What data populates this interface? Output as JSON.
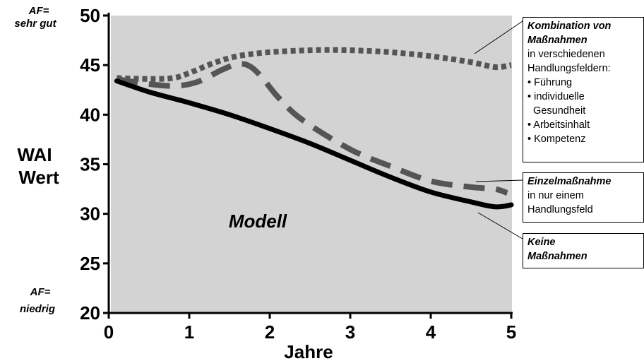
{
  "chart_data": {
    "type": "line",
    "xlabel": "Jahre",
    "ylabel": [
      "WAI",
      "Wert"
    ],
    "xlim": [
      0,
      5
    ],
    "ylim": [
      20,
      50
    ],
    "x_ticks": [
      "0",
      "1",
      "2",
      "3",
      "4",
      "5"
    ],
    "y_ticks": [
      "20",
      "25",
      "30",
      "35",
      "40",
      "45",
      "50"
    ],
    "y_top_note": [
      "AF=",
      "sehr gut"
    ],
    "y_bottom_note": [
      "AF=",
      "niedrig"
    ],
    "plot_label": "Modell",
    "grid": false,
    "plot_background": "#d3d3d3",
    "series": [
      {
        "key": "kombination",
        "style": "dotted",
        "color": "#555555",
        "x": [
          0.1,
          0.5,
          0.8,
          1.0,
          1.3,
          1.6,
          2.0,
          2.5,
          3.0,
          3.5,
          4.0,
          4.5,
          4.8,
          5.0
        ],
        "y": [
          43.7,
          43.6,
          43.7,
          44.2,
          45.2,
          45.9,
          46.3,
          46.5,
          46.5,
          46.3,
          45.9,
          45.3,
          44.8,
          45.0
        ]
      },
      {
        "key": "einzel",
        "style": "dashed",
        "color": "#555555",
        "x": [
          0.1,
          0.4,
          0.8,
          1.1,
          1.4,
          1.6,
          1.75,
          1.9,
          2.1,
          2.4,
          3.0,
          3.5,
          4.0,
          4.5,
          4.8,
          4.95
        ],
        "y": [
          43.6,
          43.2,
          42.9,
          43.3,
          44.5,
          45.1,
          44.9,
          43.8,
          41.8,
          39.5,
          36.5,
          34.8,
          33.3,
          32.7,
          32.5,
          32.1
        ]
      },
      {
        "key": "keine",
        "style": "solid",
        "color": "#000000",
        "x": [
          0.1,
          0.5,
          1.0,
          1.5,
          2.0,
          2.5,
          3.0,
          3.5,
          4.0,
          4.5,
          4.8,
          5.0
        ],
        "y": [
          43.4,
          42.3,
          41.2,
          40.0,
          38.6,
          37.1,
          35.4,
          33.7,
          32.2,
          31.2,
          30.7,
          30.9
        ]
      }
    ],
    "annotations": [
      {
        "key": "kombination",
        "bold_lines": [
          "Kombination von",
          "Maßnahmen"
        ],
        "lines": [
          "in verschiedenen",
          "Handlungsfeldern:",
          "• Führung",
          "• individuelle",
          "  Gesundheit",
          "• Arbeitsinhalt",
          "• Kompetenz"
        ]
      },
      {
        "key": "einzel",
        "bold_lines": [
          "Einzelmaßnahme"
        ],
        "lines": [
          "in nur einem",
          "Handlungsfeld"
        ]
      },
      {
        "key": "keine",
        "bold_lines": [
          "Keine",
          "Maßnahmen"
        ],
        "lines": []
      }
    ]
  }
}
